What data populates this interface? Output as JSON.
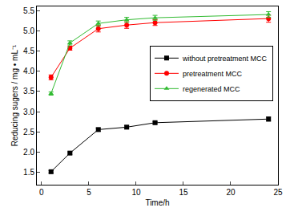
{
  "chart_data": {
    "type": "line",
    "x_label": "Time/h",
    "y_label": "Reducing sugers / mg • mL⁻¹",
    "xlim": [
      -0.5,
      25
    ],
    "xticks": [
      0,
      5,
      10,
      15,
      20,
      25
    ],
    "ylim": [
      1.2,
      5.6
    ],
    "yticks": [
      1.5,
      {
        "value": 2,
        "label": "2.0"
      },
      2.5,
      {
        "value": 3,
        "label": "3.0"
      },
      3.5,
      {
        "value": 4,
        "label": "4.0"
      },
      4.5,
      {
        "value": 5,
        "label": "5.0"
      },
      5.5
    ],
    "grid": false,
    "legend": "upper right",
    "x": [
      1,
      3,
      6,
      9,
      12,
      24
    ],
    "series": [
      {
        "name": "without pretreatment MCC",
        "color": "#000000",
        "marker": "square",
        "line_style": "solid",
        "values": [
          1.52,
          1.98,
          2.56,
          2.62,
          2.73,
          2.82
        ],
        "error": [
          0.03,
          0.03,
          0.04,
          0.04,
          0.03,
          0.05
        ]
      },
      {
        "name": "pretreatment MCC",
        "color": "#ff0000",
        "marker": "circle",
        "line_style": "solid",
        "values": [
          3.85,
          4.57,
          5.05,
          5.14,
          5.2,
          5.3
        ],
        "error": [
          0.06,
          0.05,
          0.08,
          0.08,
          0.07,
          0.09
        ]
      },
      {
        "name": "regenerated MCC",
        "color": "#33bb33",
        "marker": "triangle-up",
        "line_style": "solid",
        "values": [
          3.45,
          4.7,
          5.18,
          5.27,
          5.32,
          5.4
        ],
        "error": [
          0.04,
          0.05,
          0.06,
          0.06,
          0.06,
          0.07
        ]
      }
    ]
  }
}
